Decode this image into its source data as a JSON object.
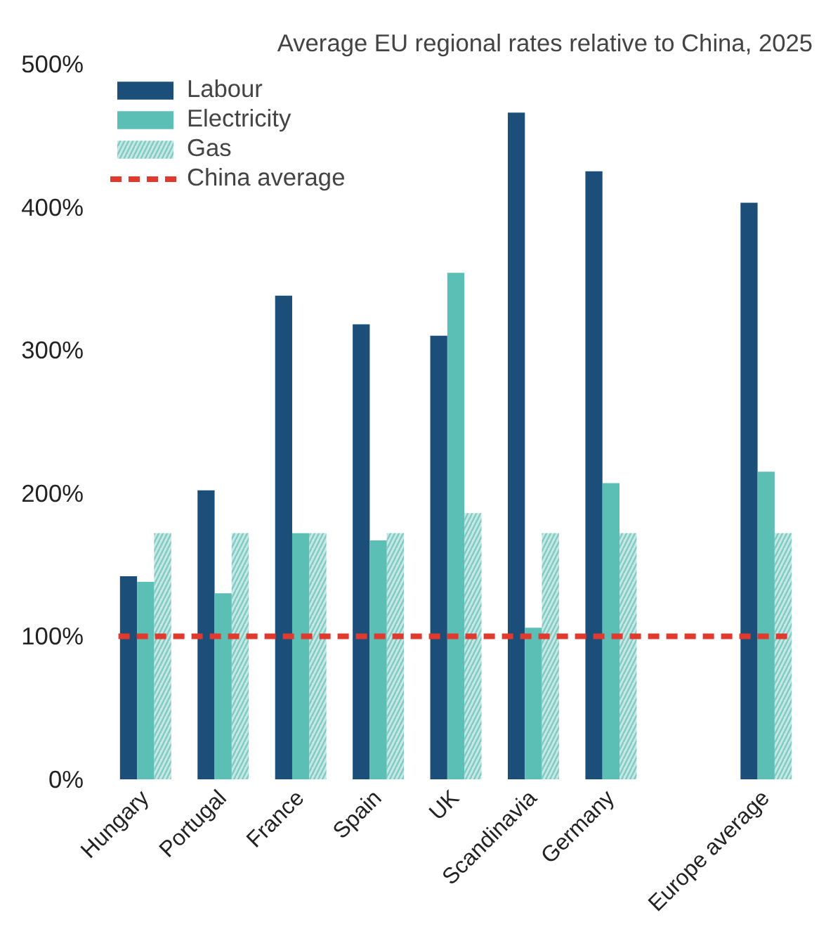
{
  "chart_data": {
    "type": "bar",
    "title": "Average EU regional rates relative to China, 2025",
    "categories": [
      "Hungary",
      "Portugal",
      "France",
      "Spain",
      "UK",
      "Scandinavia",
      "Germany",
      null,
      "Europe average"
    ],
    "series": [
      {
        "name": "Labour",
        "color": "#1b4f7a",
        "values": [
          142,
          202,
          338,
          318,
          310,
          466,
          425,
          null,
          403
        ]
      },
      {
        "name": "Electricity",
        "color": "#5cbfb6",
        "values": [
          138,
          130,
          172,
          167,
          354,
          106,
          207,
          null,
          215
        ]
      },
      {
        "name": "Gas",
        "color": "#7fcbc4",
        "values": [
          172,
          172,
          172,
          172,
          186,
          172,
          172,
          null,
          172
        ]
      }
    ],
    "ref_lines": [
      {
        "axis": "y",
        "value": 100,
        "label": "China average",
        "color": "#e03a2f",
        "line_style": "dashed"
      }
    ],
    "ylim": [
      0,
      500
    ],
    "yticks": [
      {
        "value": 0,
        "label": "0%"
      },
      {
        "value": 100,
        "label": "100%"
      },
      {
        "value": 200,
        "label": "200%"
      },
      {
        "value": 300,
        "label": "300%"
      },
      {
        "value": 400,
        "label": "400%"
      },
      {
        "value": 500,
        "label": "500%"
      }
    ],
    "grid": false,
    "legend": "top left"
  }
}
